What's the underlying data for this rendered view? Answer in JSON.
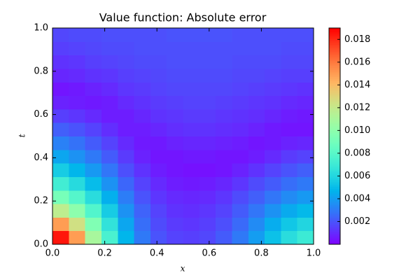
{
  "chart_data": {
    "type": "heatmap",
    "title": "Value function: Absolute error",
    "xlabel": "x",
    "ylabel": "t",
    "colormap": "rainbow",
    "xlim": [
      0,
      1
    ],
    "ylim": [
      0,
      1
    ],
    "zlim": [
      0,
      0.019
    ],
    "xticks": [
      {
        "value": 0,
        "label": "0.0"
      },
      {
        "value": 0.2,
        "label": "0.2"
      },
      {
        "value": 0.4,
        "label": "0.4"
      },
      {
        "value": 0.6,
        "label": "0.6"
      },
      {
        "value": 0.8,
        "label": "0.8"
      },
      {
        "value": 1,
        "label": "1.0"
      }
    ],
    "yticks": [
      {
        "value": 0,
        "label": "0.0"
      },
      {
        "value": 0.2,
        "label": "0.2"
      },
      {
        "value": 0.4,
        "label": "0.4"
      },
      {
        "value": 0.6,
        "label": "0.6"
      },
      {
        "value": 0.8,
        "label": "0.8"
      },
      {
        "value": 1,
        "label": "1.0"
      }
    ],
    "zticks": [
      0.002,
      0.004,
      0.006,
      0.008,
      {
        "value": 0.01,
        "label": "0.010"
      },
      0.012,
      0.014,
      0.016,
      0.018
    ],
    "z": [
      [
        0.0185,
        0.015,
        0.011,
        0.0075,
        0.0048,
        0.003,
        0.002,
        0.0016,
        0.0015,
        0.0017,
        0.0022,
        0.003,
        0.004,
        0.0052,
        0.0063,
        0.007
      ],
      [
        0.015,
        0.0125,
        0.0095,
        0.0066,
        0.0043,
        0.0027,
        0.0018,
        0.0014,
        0.0013,
        0.0015,
        0.0019,
        0.0026,
        0.0035,
        0.0045,
        0.0054,
        0.006
      ],
      [
        0.0118,
        0.01,
        0.0078,
        0.0056,
        0.0037,
        0.0024,
        0.0016,
        0.0012,
        0.0011,
        0.0013,
        0.0016,
        0.0022,
        0.0029,
        0.0037,
        0.0044,
        0.0049
      ],
      [
        0.0092,
        0.0079,
        0.0063,
        0.0046,
        0.0031,
        0.002,
        0.0013,
        0.001,
        0.0009,
        0.001,
        0.0013,
        0.0018,
        0.0023,
        0.0029,
        0.0035,
        0.0039
      ],
      [
        0.0072,
        0.0062,
        0.005,
        0.0037,
        0.0025,
        0.0016,
        0.001,
        0.0007,
        0.0006,
        0.0007,
        0.0009,
        0.0013,
        0.0018,
        0.0022,
        0.0027,
        0.003
      ],
      [
        0.0056,
        0.0048,
        0.0039,
        0.0029,
        0.0019,
        0.0012,
        0.0007,
        0.0005,
        0.0004,
        0.0004,
        0.0005,
        0.0008,
        0.0012,
        0.0016,
        0.002,
        0.0023
      ],
      [
        0.0043,
        0.0037,
        0.003,
        0.0022,
        0.0014,
        0.0008,
        0.0005,
        0.0005,
        0.0006,
        0.0006,
        0.0005,
        0.0005,
        0.0007,
        0.001,
        0.0014,
        0.0016
      ],
      [
        0.0032,
        0.0028,
        0.0022,
        0.0016,
        0.001,
        0.0006,
        0.0006,
        0.0008,
        0.0009,
        0.0009,
        0.0008,
        0.0007,
        0.0005,
        0.0006,
        0.0008,
        0.0009
      ],
      [
        0.0023,
        0.002,
        0.0016,
        0.0011,
        0.0007,
        0.0007,
        0.0009,
        0.0011,
        0.0012,
        0.0012,
        0.0011,
        0.001,
        0.0008,
        0.0006,
        0.0005,
        0.0005
      ],
      [
        0.0015,
        0.0013,
        0.001,
        0.0007,
        0.0007,
        0.0009,
        0.0012,
        0.0013,
        0.0014,
        0.0014,
        0.0013,
        0.0012,
        0.0011,
        0.0009,
        0.0007,
        0.0006
      ],
      [
        0.0008,
        0.0007,
        0.0006,
        0.0007,
        0.001,
        0.0012,
        0.0014,
        0.0015,
        0.0016,
        0.0016,
        0.0015,
        0.0014,
        0.0013,
        0.0012,
        0.001,
        0.0009
      ],
      [
        0.0005,
        0.0006,
        0.0008,
        0.001,
        0.0013,
        0.0014,
        0.0016,
        0.0017,
        0.0017,
        0.0017,
        0.0017,
        0.0016,
        0.0015,
        0.0014,
        0.0013,
        0.0012
      ],
      [
        0.0009,
        0.001,
        0.0012,
        0.0013,
        0.0015,
        0.0016,
        0.0017,
        0.0018,
        0.0018,
        0.0018,
        0.0018,
        0.0017,
        0.0017,
        0.0016,
        0.0015,
        0.0015
      ],
      [
        0.0012,
        0.0013,
        0.0015,
        0.0016,
        0.0017,
        0.0018,
        0.0018,
        0.0019,
        0.0019,
        0.0019,
        0.0019,
        0.0018,
        0.0018,
        0.0018,
        0.0017,
        0.0017
      ],
      [
        0.0015,
        0.0016,
        0.0017,
        0.0018,
        0.0018,
        0.0019,
        0.0019,
        0.0019,
        0.0019,
        0.0019,
        0.0019,
        0.0019,
        0.0019,
        0.0019,
        0.0018,
        0.0018
      ],
      [
        0.0017,
        0.0018,
        0.0018,
        0.0019,
        0.0019,
        0.0019,
        0.0019,
        0.002,
        0.002,
        0.002,
        0.002,
        0.0019,
        0.0019,
        0.0019,
        0.0019,
        0.0019
      ]
    ]
  }
}
